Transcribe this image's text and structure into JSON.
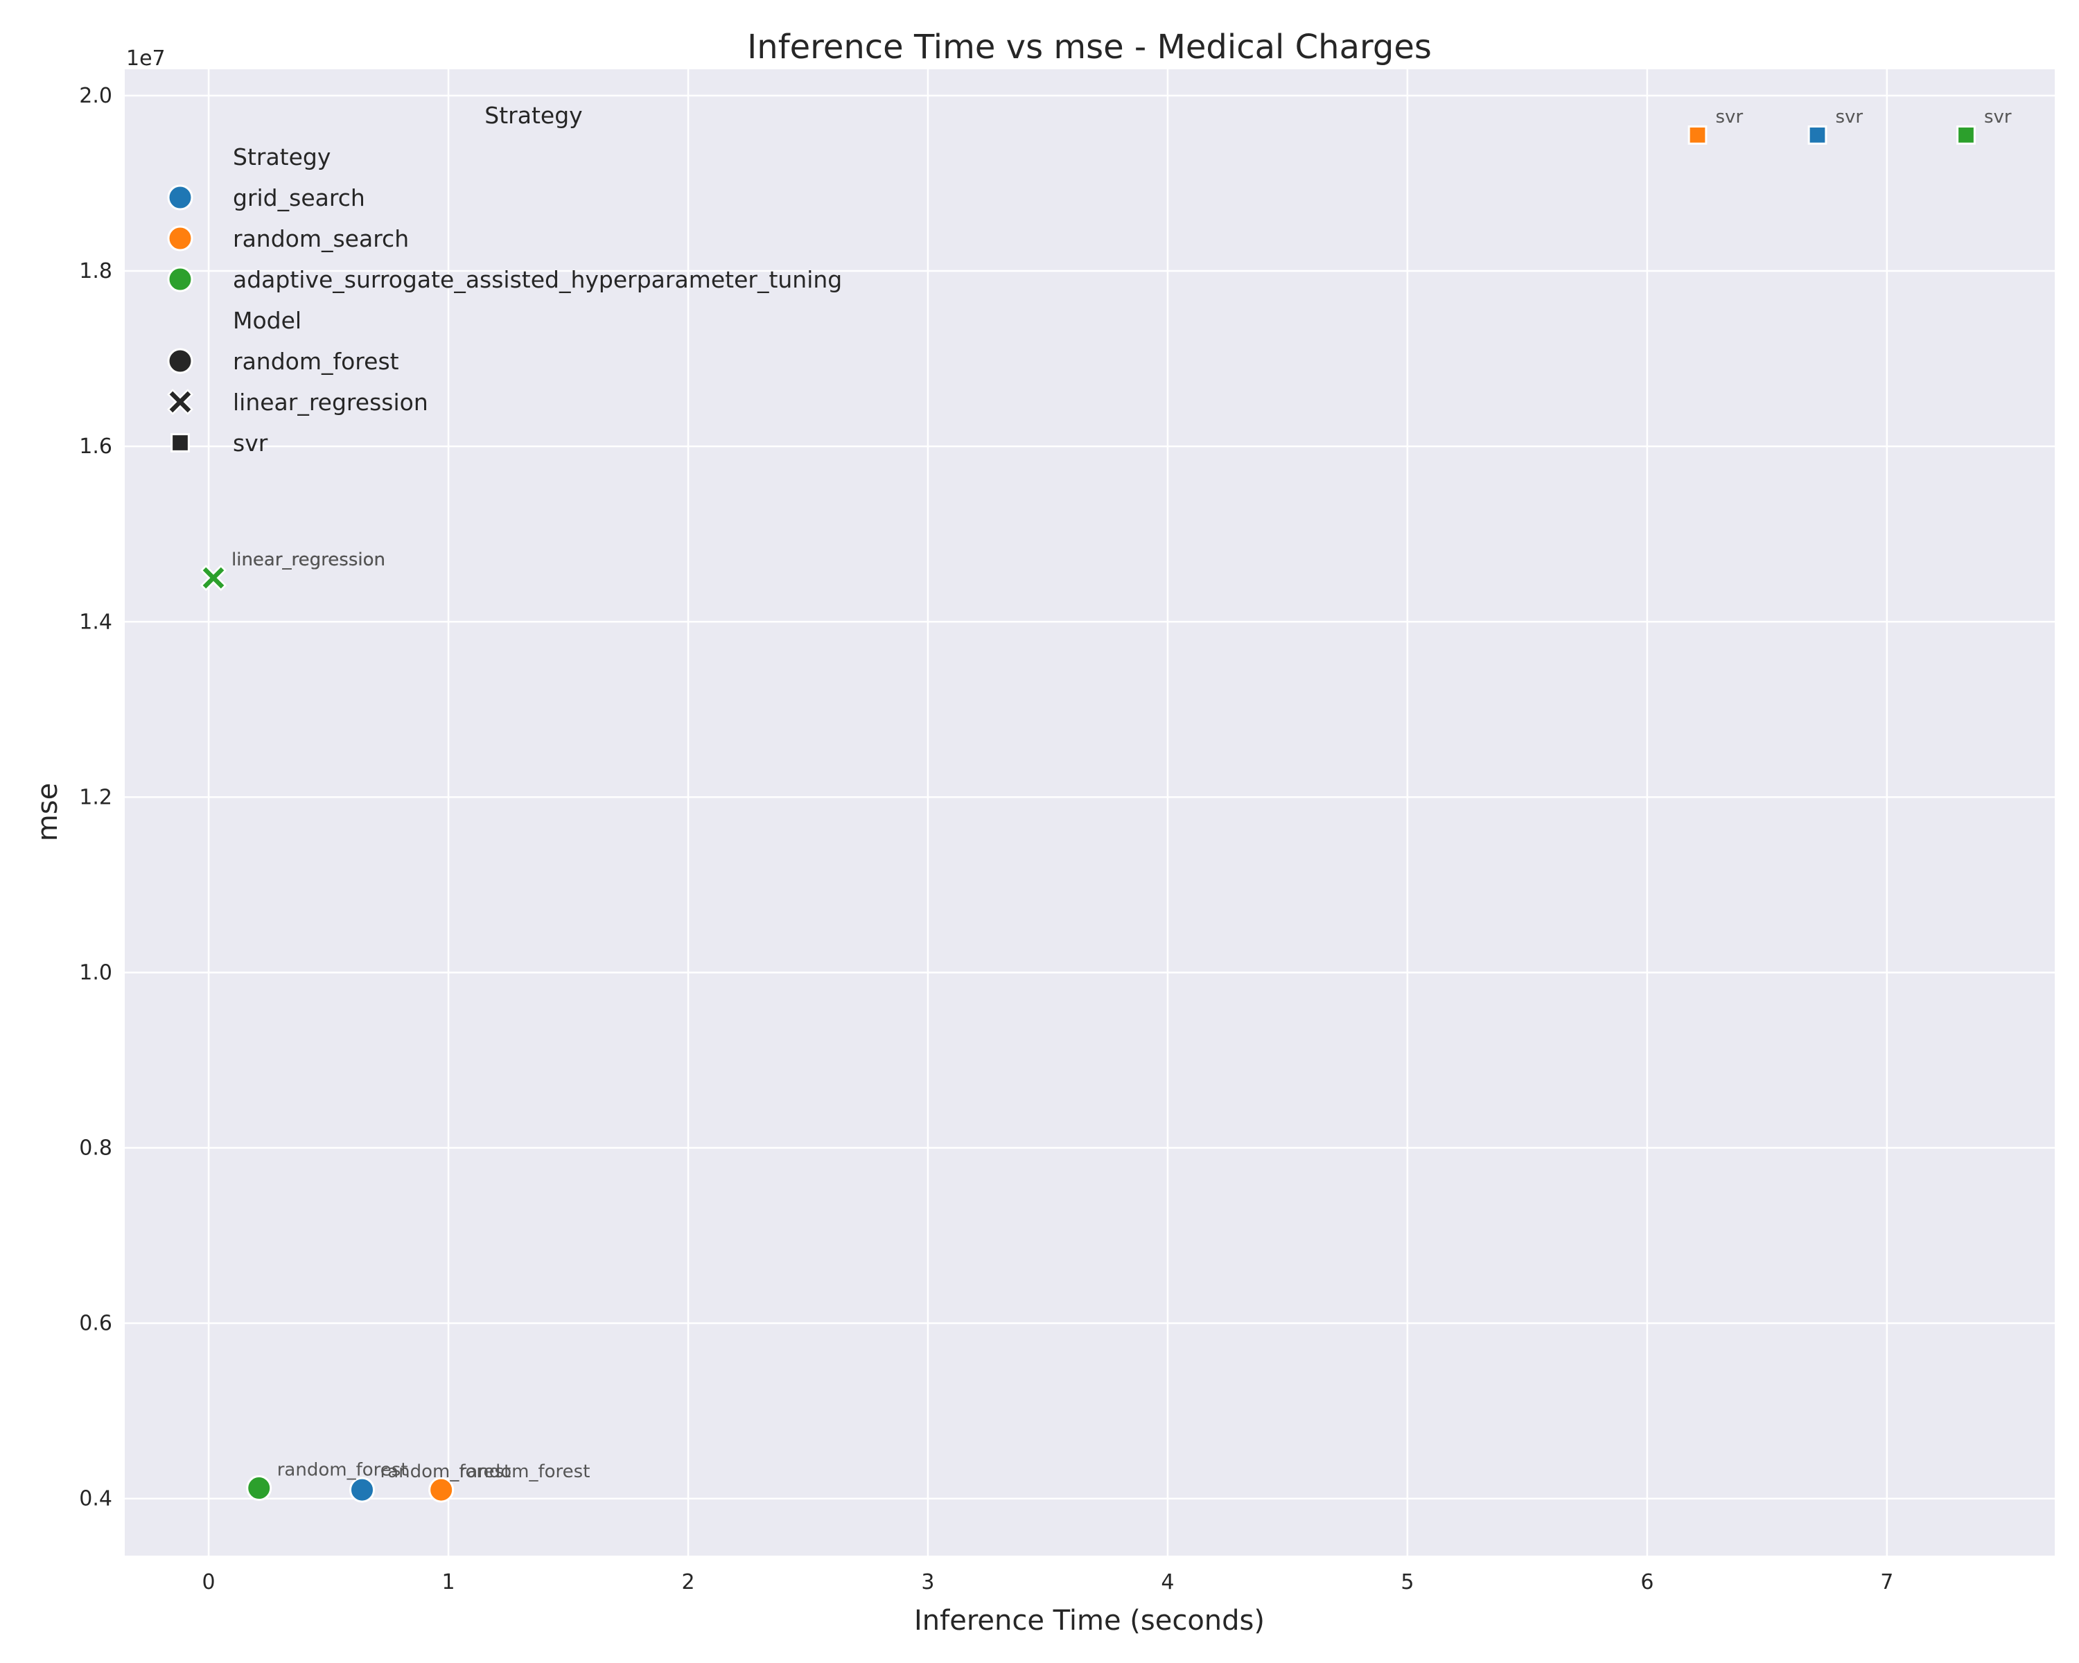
{
  "chart_data": {
    "type": "scatter",
    "title": "Inference Time vs mse - Medical Charges",
    "xlabel": "Inference Time (seconds)",
    "ylabel": "mse",
    "y_offset_text": "1e7",
    "xlim": [
      -0.35,
      7.7
    ],
    "ylim": [
      3.35,
      20.3
    ],
    "x_ticks": [
      0,
      1,
      2,
      3,
      4,
      5,
      6,
      7
    ],
    "y_ticks": [
      4,
      6,
      8,
      10,
      12,
      14,
      16,
      18,
      20
    ],
    "y_tick_labels": [
      "0.4",
      "0.6",
      "0.8",
      "1.0",
      "1.2",
      "1.4",
      "1.6",
      "1.8",
      "2.0"
    ],
    "grid": true,
    "legend_placement": "upper-left",
    "legend_floating_title": "Strategy",
    "legend": {
      "strategy_title": "Strategy",
      "strategies": [
        {
          "name": "grid_search",
          "color": "#1f77b4"
        },
        {
          "name": "random_search",
          "color": "#ff7f0e"
        },
        {
          "name": "adaptive_surrogate_assisted_hyperparameter_tuning",
          "color": "#2ca02c"
        }
      ],
      "model_title": "Model",
      "models": [
        {
          "name": "random_forest",
          "marker": "circle"
        },
        {
          "name": "linear_regression",
          "marker": "x"
        },
        {
          "name": "svr",
          "marker": "square"
        }
      ]
    },
    "points": [
      {
        "strategy": "grid_search",
        "model": "random_forest",
        "x": 0.64,
        "y": 4.1,
        "label": "random_forest"
      },
      {
        "strategy": "random_search",
        "model": "random_forest",
        "x": 0.97,
        "y": 4.1,
        "label": "random_forest"
      },
      {
        "strategy": "adaptive_surrogate_assisted_hyperparameter_tuning",
        "model": "random_forest",
        "x": 0.21,
        "y": 4.12,
        "label": "random_forest"
      },
      {
        "strategy": "grid_search",
        "model": "linear_regression",
        "x": 0.02,
        "y": 14.5,
        "label": "linear_regression"
      },
      {
        "strategy": "random_search",
        "model": "linear_regression",
        "x": 0.02,
        "y": 14.5,
        "label": "linear_regression"
      },
      {
        "strategy": "adaptive_surrogate_assisted_hyperparameter_tuning",
        "model": "linear_regression",
        "x": 0.02,
        "y": 14.5,
        "label": "linear_regression"
      },
      {
        "strategy": "grid_search",
        "model": "svr",
        "x": 6.71,
        "y": 19.55,
        "label": "svr"
      },
      {
        "strategy": "random_search",
        "model": "svr",
        "x": 6.21,
        "y": 19.55,
        "label": "svr"
      },
      {
        "strategy": "adaptive_surrogate_assisted_hyperparameter_tuning",
        "model": "svr",
        "x": 7.33,
        "y": 19.55,
        "label": "svr"
      }
    ]
  }
}
